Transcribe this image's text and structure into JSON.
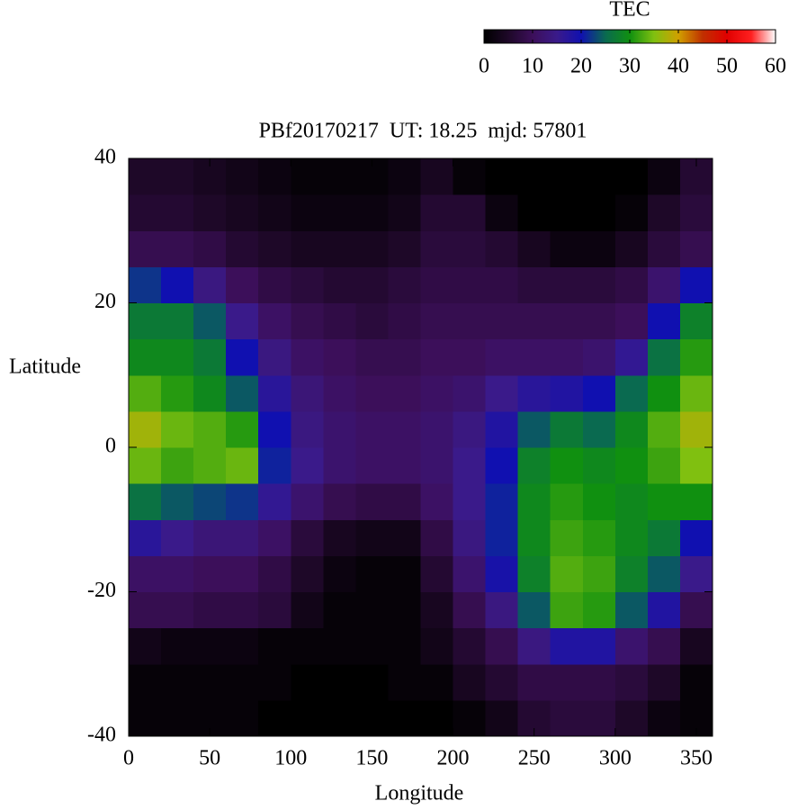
{
  "chart_data": {
    "type": "heatmap",
    "title": "PBf20170217  UT: 18.25  mjd: 57801",
    "xlabel": "Longitude",
    "ylabel": "Latitude",
    "colorbar_label": "TEC",
    "xbins": [
      0,
      20,
      40,
      60,
      80,
      100,
      120,
      140,
      160,
      180,
      200,
      220,
      240,
      260,
      280,
      300,
      320,
      340,
      360
    ],
    "ybins": [
      -40,
      -35,
      -30,
      -25,
      -20,
      -15,
      -10,
      -5,
      0,
      5,
      10,
      15,
      20,
      25,
      30,
      35,
      40
    ],
    "values": [
      [
        1,
        1,
        1,
        1,
        0,
        0,
        0,
        0,
        0,
        0,
        1,
        3,
        6,
        7,
        7,
        5,
        2,
        1
      ],
      [
        1,
        1,
        1,
        1,
        1,
        0,
        0,
        0,
        1,
        1,
        4,
        6,
        8,
        8,
        8,
        7,
        5,
        1
      ],
      [
        3,
        2,
        2,
        2,
        1,
        1,
        1,
        1,
        1,
        3,
        6,
        9,
        14,
        18,
        18,
        12,
        9,
        4
      ],
      [
        9,
        9,
        8,
        8,
        7,
        3,
        1,
        1,
        1,
        4,
        9,
        14,
        24,
        32,
        31,
        24,
        18,
        9
      ],
      [
        11,
        11,
        10,
        10,
        8,
        5,
        2,
        1,
        1,
        6,
        12,
        19,
        28,
        33,
        32,
        28,
        24,
        15
      ],
      [
        17,
        15,
        13,
        13,
        11,
        7,
        4,
        3,
        3,
        8,
        14,
        21,
        29,
        32,
        31,
        29,
        27,
        20
      ],
      [
        26,
        24,
        23,
        22,
        16,
        12,
        9,
        8,
        8,
        11,
        15,
        21,
        29,
        31,
        30,
        29,
        30,
        30
      ],
      [
        34,
        32,
        33,
        34,
        21,
        15,
        12,
        11,
        11,
        12,
        15,
        20,
        28,
        30,
        29,
        30,
        32,
        35
      ],
      [
        37,
        34,
        33,
        31,
        20,
        14,
        12,
        11,
        11,
        12,
        14,
        18,
        24,
        27,
        25,
        29,
        33,
        37
      ],
      [
        33,
        31,
        29,
        24,
        17,
        13,
        11,
        10,
        10,
        11,
        12,
        15,
        17,
        18,
        20,
        25,
        30,
        34
      ],
      [
        29,
        29,
        27,
        20,
        14,
        11,
        10,
        9,
        9,
        10,
        10,
        11,
        11,
        11,
        12,
        16,
        26,
        31
      ],
      [
        27,
        27,
        24,
        15,
        11,
        9,
        8,
        7,
        8,
        9,
        9,
        9,
        9,
        9,
        9,
        10,
        20,
        28
      ],
      [
        22,
        20,
        14,
        10,
        8,
        7,
        6,
        6,
        7,
        8,
        8,
        8,
        7,
        7,
        7,
        8,
        12,
        20
      ],
      [
        9,
        9,
        8,
        6,
        5,
        4,
        4,
        4,
        5,
        7,
        7,
        6,
        4,
        2,
        2,
        4,
        7,
        9
      ],
      [
        6,
        6,
        5,
        4,
        3,
        2,
        2,
        2,
        3,
        6,
        6,
        2,
        0,
        0,
        0,
        1,
        5,
        7
      ],
      [
        5,
        5,
        4,
        3,
        2,
        1,
        1,
        1,
        2,
        4,
        1,
        0,
        0,
        0,
        0,
        0,
        2,
        6
      ]
    ],
    "xlim": [
      0,
      360
    ],
    "xticks": [
      0,
      50,
      100,
      150,
      200,
      250,
      300,
      350
    ],
    "ylim": [
      -40,
      40
    ],
    "yticks": [
      -40,
      -20,
      0,
      20,
      40
    ],
    "clim": [
      0,
      60
    ],
    "cticks": [
      0,
      10,
      20,
      30,
      40,
      50,
      60
    ],
    "colorscale": [
      "#000000",
      "#1e0828",
      "#3c0f5a",
      "#3a1a8a",
      "#1010b0",
      "#0a6a50",
      "#109010",
      "#80c010",
      "#d0a000",
      "#c03000",
      "#e00000",
      "#ff2020",
      "#ffffff"
    ]
  }
}
